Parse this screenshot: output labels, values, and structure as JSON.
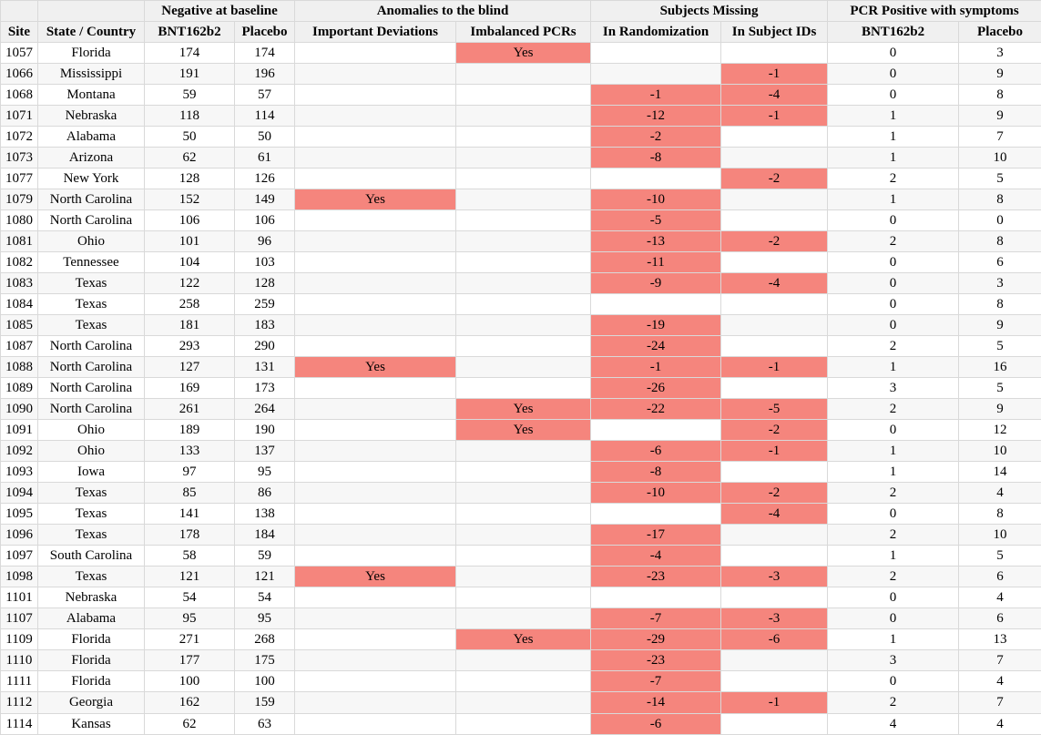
{
  "colors": {
    "highlight": "#f5857d",
    "stripe": "#f7f7f7",
    "header_bg": "#f0f0f0",
    "grid_line": "#d9d9d9"
  },
  "table": {
    "group_headers": [
      "Negative at baseline",
      "Anomalies to the blind",
      "Subjects Missing",
      "PCR Positive with symptoms"
    ],
    "columns": [
      "Site",
      "State / Country",
      "BNT162b2",
      "Placebo",
      "Important Deviations",
      "Imbalanced PCRs",
      "In Randomization",
      "In Subject IDs",
      "BNT162b2",
      "Placebo"
    ],
    "column_keys": [
      "site",
      "state-country",
      "neg-baseline-bnt162b2",
      "neg-baseline-placebo",
      "important-deviations",
      "imbalanced-pcrs",
      "missing-in-randomization",
      "missing-in-subject-ids",
      "pcr-positive-bnt162b2",
      "pcr-positive-placebo"
    ],
    "highlight_column_indexes": [
      4,
      5,
      6,
      7
    ],
    "rows": [
      [
        "1057",
        "Florida",
        "174",
        "174",
        "",
        "Yes",
        "",
        "",
        "0",
        "3"
      ],
      [
        "1066",
        "Mississippi",
        "191",
        "196",
        "",
        "",
        "",
        "-1",
        "0",
        "9"
      ],
      [
        "1068",
        "Montana",
        "59",
        "57",
        "",
        "",
        "-1",
        "-4",
        "0",
        "8"
      ],
      [
        "1071",
        "Nebraska",
        "118",
        "114",
        "",
        "",
        "-12",
        "-1",
        "1",
        "9"
      ],
      [
        "1072",
        "Alabama",
        "50",
        "50",
        "",
        "",
        "-2",
        "",
        "1",
        "7"
      ],
      [
        "1073",
        "Arizona",
        "62",
        "61",
        "",
        "",
        "-8",
        "",
        "1",
        "10"
      ],
      [
        "1077",
        "New York",
        "128",
        "126",
        "",
        "",
        "",
        "-2",
        "2",
        "5"
      ],
      [
        "1079",
        "North Carolina",
        "152",
        "149",
        "Yes",
        "",
        "-10",
        "",
        "1",
        "8"
      ],
      [
        "1080",
        "North Carolina",
        "106",
        "106",
        "",
        "",
        "-5",
        "",
        "0",
        "0"
      ],
      [
        "1081",
        "Ohio",
        "101",
        "96",
        "",
        "",
        "-13",
        "-2",
        "2",
        "8"
      ],
      [
        "1082",
        "Tennessee",
        "104",
        "103",
        "",
        "",
        "-11",
        "",
        "0",
        "6"
      ],
      [
        "1083",
        "Texas",
        "122",
        "128",
        "",
        "",
        "-9",
        "-4",
        "0",
        "3"
      ],
      [
        "1084",
        "Texas",
        "258",
        "259",
        "",
        "",
        "",
        "",
        "0",
        "8"
      ],
      [
        "1085",
        "Texas",
        "181",
        "183",
        "",
        "",
        "-19",
        "",
        "0",
        "9"
      ],
      [
        "1087",
        "North Carolina",
        "293",
        "290",
        "",
        "",
        "-24",
        "",
        "2",
        "5"
      ],
      [
        "1088",
        "North Carolina",
        "127",
        "131",
        "Yes",
        "",
        "-1",
        "-1",
        "1",
        "16"
      ],
      [
        "1089",
        "North Carolina",
        "169",
        "173",
        "",
        "",
        "-26",
        "",
        "3",
        "5"
      ],
      [
        "1090",
        "North Carolina",
        "261",
        "264",
        "",
        "Yes",
        "-22",
        "-5",
        "2",
        "9"
      ],
      [
        "1091",
        "Ohio",
        "189",
        "190",
        "",
        "Yes",
        "",
        "-2",
        "0",
        "12"
      ],
      [
        "1092",
        "Ohio",
        "133",
        "137",
        "",
        "",
        "-6",
        "-1",
        "1",
        "10"
      ],
      [
        "1093",
        "Iowa",
        "97",
        "95",
        "",
        "",
        "-8",
        "",
        "1",
        "14"
      ],
      [
        "1094",
        "Texas",
        "85",
        "86",
        "",
        "",
        "-10",
        "-2",
        "2",
        "4"
      ],
      [
        "1095",
        "Texas",
        "141",
        "138",
        "",
        "",
        "",
        "-4",
        "0",
        "8"
      ],
      [
        "1096",
        "Texas",
        "178",
        "184",
        "",
        "",
        "-17",
        "",
        "2",
        "10"
      ],
      [
        "1097",
        "South Carolina",
        "58",
        "59",
        "",
        "",
        "-4",
        "",
        "1",
        "5"
      ],
      [
        "1098",
        "Texas",
        "121",
        "121",
        "Yes",
        "",
        "-23",
        "-3",
        "2",
        "6"
      ],
      [
        "1101",
        "Nebraska",
        "54",
        "54",
        "",
        "",
        "",
        "",
        "0",
        "4"
      ],
      [
        "1107",
        "Alabama",
        "95",
        "95",
        "",
        "",
        "-7",
        "-3",
        "0",
        "6"
      ],
      [
        "1109",
        "Florida",
        "271",
        "268",
        "",
        "Yes",
        "-29",
        "-6",
        "1",
        "13"
      ],
      [
        "1110",
        "Florida",
        "177",
        "175",
        "",
        "",
        "-23",
        "",
        "3",
        "7"
      ],
      [
        "1111",
        "Florida",
        "100",
        "100",
        "",
        "",
        "-7",
        "",
        "0",
        "4"
      ],
      [
        "1112",
        "Georgia",
        "162",
        "159",
        "",
        "",
        "-14",
        "-1",
        "2",
        "7"
      ],
      [
        "1114",
        "Kansas",
        "62",
        "63",
        "",
        "",
        "-6",
        "",
        "4",
        "4"
      ]
    ]
  }
}
